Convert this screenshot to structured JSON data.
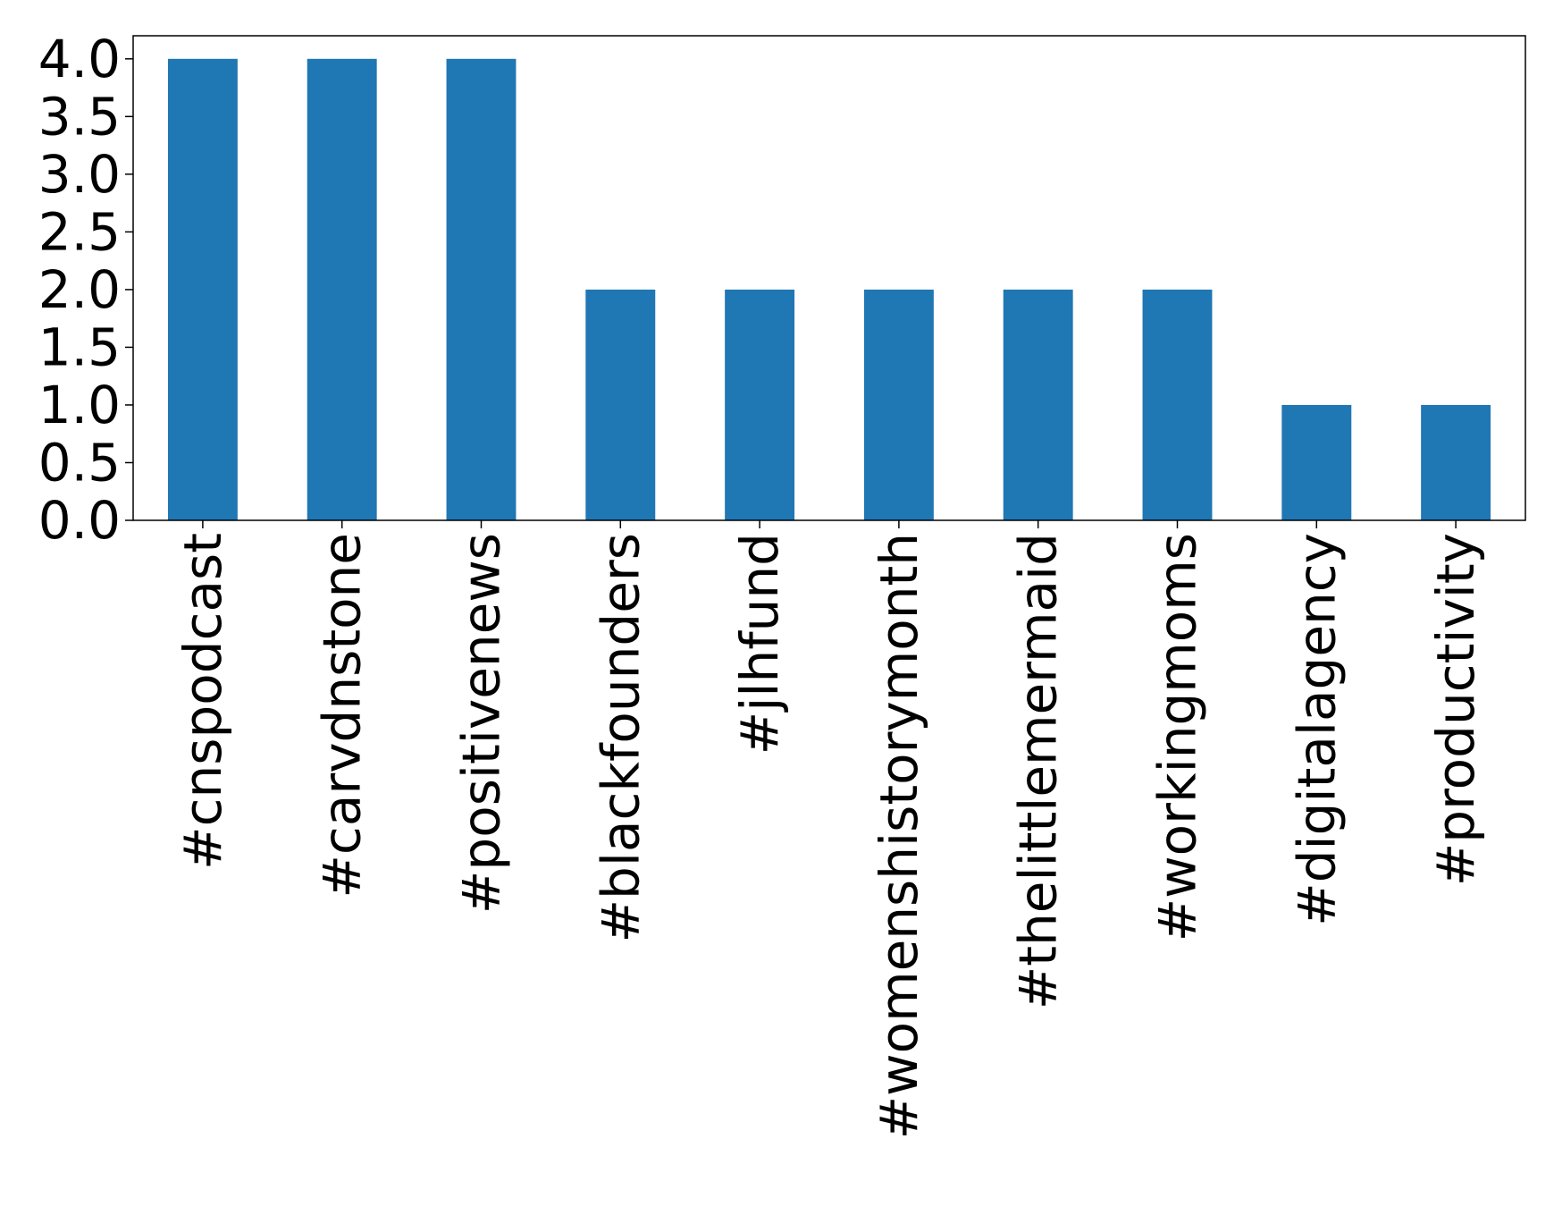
{
  "chart_data": {
    "type": "bar",
    "categories": [
      "#cnspodcast",
      "#carvdnstone",
      "#positivenews",
      "#blackfounders",
      "#jlhfund",
      "#womenshistorymonth",
      "#thelittlemermaid",
      "#workingmoms",
      "#digitalagency",
      "#productivity"
    ],
    "values": [
      4,
      4,
      4,
      2,
      2,
      2,
      2,
      2,
      1,
      1
    ],
    "color": "#1f77b4",
    "ylim": [
      0,
      4.2
    ],
    "yticks": [
      {
        "value": 0,
        "label": "0.0"
      },
      {
        "value": 0.5,
        "label": "0.5"
      },
      {
        "value": 1,
        "label": "1.0"
      },
      {
        "value": 1.5,
        "label": "1.5"
      },
      {
        "value": 2,
        "label": "2.0"
      },
      {
        "value": 2.5,
        "label": "2.5"
      },
      {
        "value": 3,
        "label": "3.0"
      },
      {
        "value": 3.5,
        "label": "3.5"
      },
      {
        "value": 4,
        "label": "4.0"
      }
    ],
    "grid": false
  }
}
